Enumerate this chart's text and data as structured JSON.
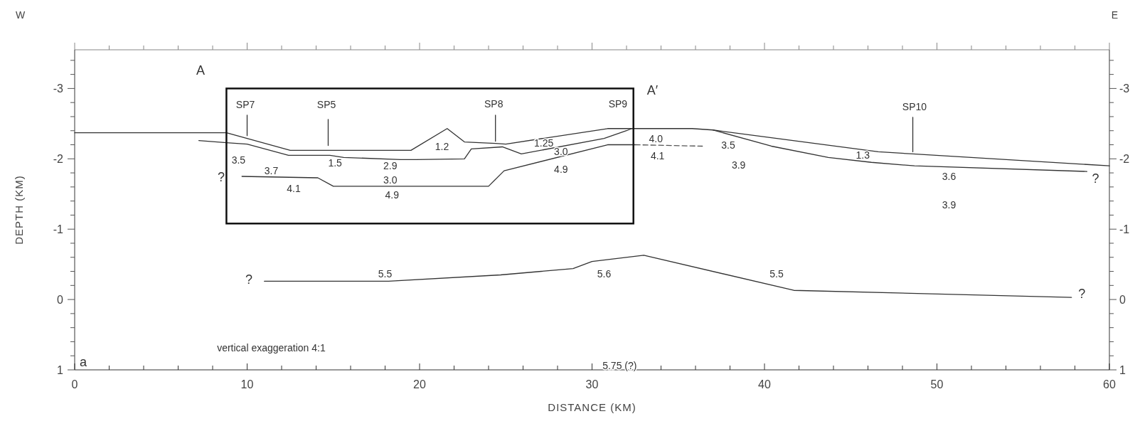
{
  "chart_data": {
    "type": "line",
    "xlabel": "DISTANCE (KM)",
    "ylabel": "DEPTH (KM)",
    "xlim": [
      0,
      60
    ],
    "ylim": [
      1,
      -3.55
    ],
    "y2lim": [
      1,
      -3.55
    ],
    "xticks": [
      0,
      {
        "value": 2,
        "label": null
      },
      {
        "value": 4,
        "label": null
      },
      {
        "value": 6,
        "label": null
      },
      {
        "value": 8,
        "label": null
      },
      10,
      {
        "value": 12,
        "label": null
      },
      {
        "value": 14,
        "label": null
      },
      {
        "value": 16,
        "label": null
      },
      {
        "value": 18,
        "label": null
      },
      20,
      {
        "value": 22,
        "label": null
      },
      {
        "value": 24,
        "label": null
      },
      {
        "value": 26,
        "label": null
      },
      {
        "value": 28,
        "label": null
      },
      30,
      {
        "value": 32,
        "label": null
      },
      {
        "value": 34,
        "label": null
      },
      {
        "value": 36,
        "label": null
      },
      {
        "value": 38,
        "label": null
      },
      40,
      {
        "value": 42,
        "label": null
      },
      {
        "value": 44,
        "label": null
      },
      {
        "value": 46,
        "label": null
      },
      {
        "value": 48,
        "label": null
      },
      50,
      {
        "value": 52,
        "label": null
      },
      {
        "value": 54,
        "label": null
      },
      {
        "value": 56,
        "label": null
      },
      {
        "value": 58,
        "label": null
      },
      60
    ],
    "yticks": [
      1,
      {
        "value": 0.8,
        "label": null
      },
      {
        "value": 0.6,
        "label": null
      },
      {
        "value": 0.4,
        "label": null
      },
      {
        "value": 0.2,
        "label": null
      },
      0,
      {
        "value": -0.2,
        "label": null
      },
      {
        "value": -0.4,
        "label": null
      },
      {
        "value": -0.6,
        "label": null
      },
      {
        "value": -0.8,
        "label": null
      },
      -1,
      {
        "value": -1.2,
        "label": null
      },
      {
        "value": -1.4,
        "label": null
      },
      {
        "value": -1.6,
        "label": null
      },
      {
        "value": -1.8,
        "label": null
      },
      -2,
      {
        "value": -2.2,
        "label": null
      },
      {
        "value": -2.4,
        "label": null
      },
      {
        "value": -2.6,
        "label": null
      },
      {
        "value": -2.8,
        "label": null
      },
      -3,
      {
        "value": -3.2,
        "label": null
      },
      {
        "value": -3.4,
        "label": null
      }
    ],
    "y2ticks": [
      1,
      {
        "value": 0.8,
        "label": null
      },
      {
        "value": 0.6,
        "label": null
      },
      {
        "value": 0.4,
        "label": null
      },
      {
        "value": 0.2,
        "label": null
      },
      0,
      {
        "value": -0.2,
        "label": null
      },
      {
        "value": -0.4,
        "label": null
      },
      {
        "value": -0.6,
        "label": null
      },
      {
        "value": -0.8,
        "label": null
      },
      -1,
      {
        "value": -1.2,
        "label": null
      },
      {
        "value": -1.4,
        "label": null
      },
      {
        "value": -1.6,
        "label": null
      },
      {
        "value": -1.8,
        "label": null
      },
      -2,
      {
        "value": -2.2,
        "label": null
      },
      {
        "value": -2.4,
        "label": null
      },
      {
        "value": -2.6,
        "label": null
      },
      {
        "value": -2.8,
        "label": null
      },
      -3,
      {
        "value": -3.2,
        "label": null
      },
      {
        "value": -3.4,
        "label": null
      }
    ],
    "grid": false,
    "marker": "none",
    "line_style": "solid",
    "series": [
      {
        "type": "line",
        "color": "#333333",
        "x": [
          0,
          8.8,
          12.5,
          14.8,
          19.5,
          21.6,
          22.6,
          24.4,
          25.0,
          30.9,
          35.8,
          37.0,
          40.4,
          46.6,
          48.6,
          60
        ],
        "values": [
          -2.37,
          -2.37,
          -2.12,
          -2.12,
          -2.12,
          -2.43,
          -2.24,
          -2.22,
          -2.21,
          -2.43,
          -2.43,
          -2.41,
          -2.3,
          -2.1,
          -2.07,
          -1.9
        ]
      },
      {
        "type": "line",
        "color": "#333333",
        "x": [
          7.2,
          8.8,
          10.0,
          12.4,
          14.8,
          15.6,
          18.9,
          19.8,
          22.6,
          23.0,
          24.8,
          25.9,
          30.7,
          32.0,
          32.3
        ],
        "values": [
          -2.26,
          -2.23,
          -2.21,
          -2.05,
          -2.05,
          -2.02,
          -1.99,
          -1.99,
          -2.0,
          -2.14,
          -2.17,
          -2.07,
          -2.29,
          -2.4,
          -2.43
        ]
      },
      {
        "type": "line",
        "color": "#333333",
        "x": [
          37.0,
          40.4,
          43.7,
          46.2,
          48.7,
          58.7
        ],
        "values": [
          -2.41,
          -2.18,
          -2.02,
          -1.95,
          -1.9,
          -1.82
        ]
      },
      {
        "type": "line",
        "color": "#333333",
        "x": [
          9.7,
          14.1,
          15.0,
          24.0,
          24.9,
          30.9,
          32.5
        ],
        "values": [
          -1.75,
          -1.73,
          -1.61,
          -1.61,
          -1.83,
          -2.2,
          -2.2
        ]
      },
      {
        "type": "line",
        "color": "#555555",
        "line_style": "dashed",
        "x": [
          32.5,
          36.4
        ],
        "values": [
          -2.2,
          -2.18
        ]
      },
      {
        "type": "line",
        "color": "#333333",
        "x": [
          11.0,
          18.2,
          24.7,
          28.9,
          30.0,
          33.0,
          41.7,
          57.8
        ],
        "values": [
          -0.26,
          -0.26,
          -0.35,
          -0.44,
          -0.54,
          -0.63,
          -0.13,
          -0.03
        ]
      },
      {
        "type": "line",
        "color": "#333333",
        "x": [
          10.0,
          10.0
        ],
        "values": [
          -2.62,
          -2.33
        ]
      },
      {
        "type": "line",
        "color": "#333333",
        "x": [
          14.7,
          14.7
        ],
        "values": [
          -2.56,
          -2.19
        ]
      },
      {
        "type": "line",
        "color": "#333333",
        "x": [
          24.4,
          24.4
        ],
        "values": [
          -2.62,
          -2.25
        ]
      },
      {
        "type": "line",
        "color": "#333333",
        "x": [
          48.6,
          48.6
        ],
        "values": [
          -2.59,
          -2.1
        ]
      }
    ],
    "annotations": [
      "W",
      "E",
      "A",
      "A′",
      "SP7",
      "SP5",
      "SP8",
      "SP9",
      "SP10",
      "3.5",
      "1.5",
      "?",
      "3.7",
      "4.1",
      "2.9",
      "3.0",
      "4.9",
      "1.2",
      "1.25",
      "3.0",
      "4.9",
      "4.0",
      "4.1",
      "3.5",
      "3.9",
      "1.3",
      "3.6",
      "3.9",
      "?",
      "?",
      "5.5",
      "5.6",
      "5.5",
      "?",
      "5.75 (?)",
      "vertical exaggeration 4:1",
      "a"
    ]
  }
}
